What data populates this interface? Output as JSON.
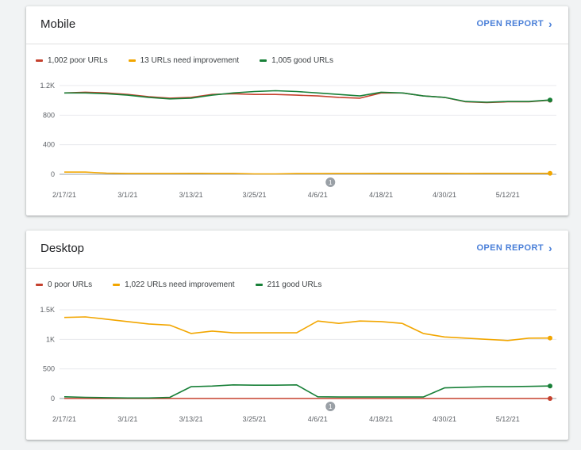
{
  "cards": [
    {
      "title": "Mobile",
      "open_report": "OPEN REPORT",
      "legend": [
        {
          "label": "1,002 poor URLs",
          "color": "#c5412e"
        },
        {
          "label": "13 URLs need improvement",
          "color": "#f2a600"
        },
        {
          "label": "1,005 good URLs",
          "color": "#188038"
        }
      ]
    },
    {
      "title": "Desktop",
      "open_report": "OPEN REPORT",
      "legend": [
        {
          "label": "0 poor URLs",
          "color": "#c5412e"
        },
        {
          "label": "1,022 URLs need improvement",
          "color": "#f2a600"
        },
        {
          "label": "211 good URLs",
          "color": "#188038"
        }
      ]
    }
  ],
  "annotation_label": "1",
  "chart_data": [
    {
      "type": "line",
      "x": [
        "2/17/21",
        "2/21/21",
        "2/25/21",
        "3/1/21",
        "3/5/21",
        "3/9/21",
        "3/13/21",
        "3/17/21",
        "3/21/21",
        "3/25/21",
        "3/29/21",
        "4/2/21",
        "4/6/21",
        "4/10/21",
        "4/14/21",
        "4/18/21",
        "4/22/21",
        "4/26/21",
        "4/30/21",
        "5/4/21",
        "5/8/21",
        "5/12/21",
        "5/16/21",
        "5/19/21"
      ],
      "xticks": [
        "2/17/21",
        "3/1/21",
        "3/13/21",
        "3/25/21",
        "4/6/21",
        "4/18/21",
        "4/30/21",
        "5/12/21"
      ],
      "yticks": [
        "0",
        "400",
        "800",
        "1.2K"
      ],
      "ylim": [
        0,
        1200
      ],
      "series": [
        {
          "name": "1,002 poor URLs",
          "color": "#c5412e",
          "values": [
            1100,
            1110,
            1100,
            1080,
            1050,
            1030,
            1040,
            1080,
            1090,
            1080,
            1080,
            1070,
            1060,
            1040,
            1030,
            1100,
            1100,
            1060,
            1040,
            980,
            970,
            980,
            980,
            1002
          ]
        },
        {
          "name": "13 URLs need improvement",
          "color": "#f2a600",
          "values": [
            30,
            30,
            15,
            12,
            12,
            12,
            13,
            12,
            12,
            5,
            5,
            10,
            10,
            12,
            12,
            13,
            13,
            13,
            13,
            12,
            13,
            13,
            13,
            13
          ]
        },
        {
          "name": "1,005 good URLs",
          "color": "#188038",
          "values": [
            1100,
            1100,
            1090,
            1070,
            1040,
            1020,
            1030,
            1070,
            1100,
            1120,
            1130,
            1120,
            1100,
            1080,
            1060,
            1110,
            1100,
            1060,
            1040,
            985,
            975,
            985,
            985,
            1005
          ]
        }
      ]
    },
    {
      "type": "line",
      "x": [
        "2/17/21",
        "2/21/21",
        "2/25/21",
        "3/1/21",
        "3/5/21",
        "3/9/21",
        "3/13/21",
        "3/17/21",
        "3/21/21",
        "3/25/21",
        "3/29/21",
        "4/2/21",
        "4/6/21",
        "4/10/21",
        "4/14/21",
        "4/18/21",
        "4/22/21",
        "4/26/21",
        "4/30/21",
        "5/4/21",
        "5/8/21",
        "5/12/21",
        "5/16/21",
        "5/19/21"
      ],
      "xticks": [
        "2/17/21",
        "3/1/21",
        "3/13/21",
        "3/25/21",
        "4/6/21",
        "4/18/21",
        "4/30/21",
        "5/12/21"
      ],
      "yticks": [
        "0",
        "500",
        "1K",
        "1.5K"
      ],
      "ylim": [
        0,
        1500
      ],
      "series": [
        {
          "name": "0 poor URLs",
          "color": "#c5412e",
          "values": [
            0,
            0,
            0,
            0,
            0,
            0,
            0,
            0,
            0,
            0,
            0,
            0,
            0,
            0,
            0,
            0,
            0,
            0,
            0,
            0,
            0,
            0,
            0,
            0
          ]
        },
        {
          "name": "1,022 URLs need improvement",
          "color": "#f2a600",
          "values": [
            1370,
            1380,
            1340,
            1300,
            1260,
            1240,
            1100,
            1140,
            1110,
            1110,
            1110,
            1110,
            1310,
            1270,
            1310,
            1300,
            1270,
            1100,
            1040,
            1020,
            1000,
            980,
            1020,
            1022
          ]
        },
        {
          "name": "211 good URLs",
          "color": "#188038",
          "values": [
            30,
            20,
            15,
            10,
            10,
            20,
            200,
            210,
            230,
            225,
            225,
            230,
            30,
            25,
            25,
            25,
            25,
            25,
            180,
            190,
            200,
            200,
            205,
            211
          ]
        }
      ]
    }
  ]
}
